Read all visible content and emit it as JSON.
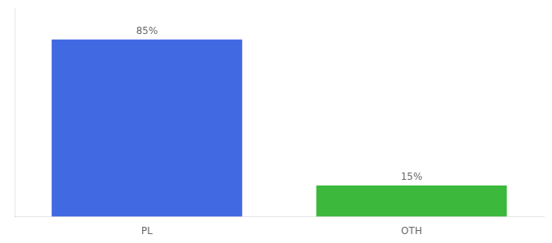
{
  "chart_data": {
    "type": "bar",
    "categories": [
      "PL",
      "OTH"
    ],
    "values": [
      85,
      15
    ],
    "value_labels": [
      "85%",
      "15%"
    ],
    "colors": [
      "#4169e1",
      "#3cb83c"
    ],
    "ylim": [
      0,
      100
    ],
    "grid": false,
    "legend": false,
    "data_labels": true,
    "tick_labels": "x"
  }
}
